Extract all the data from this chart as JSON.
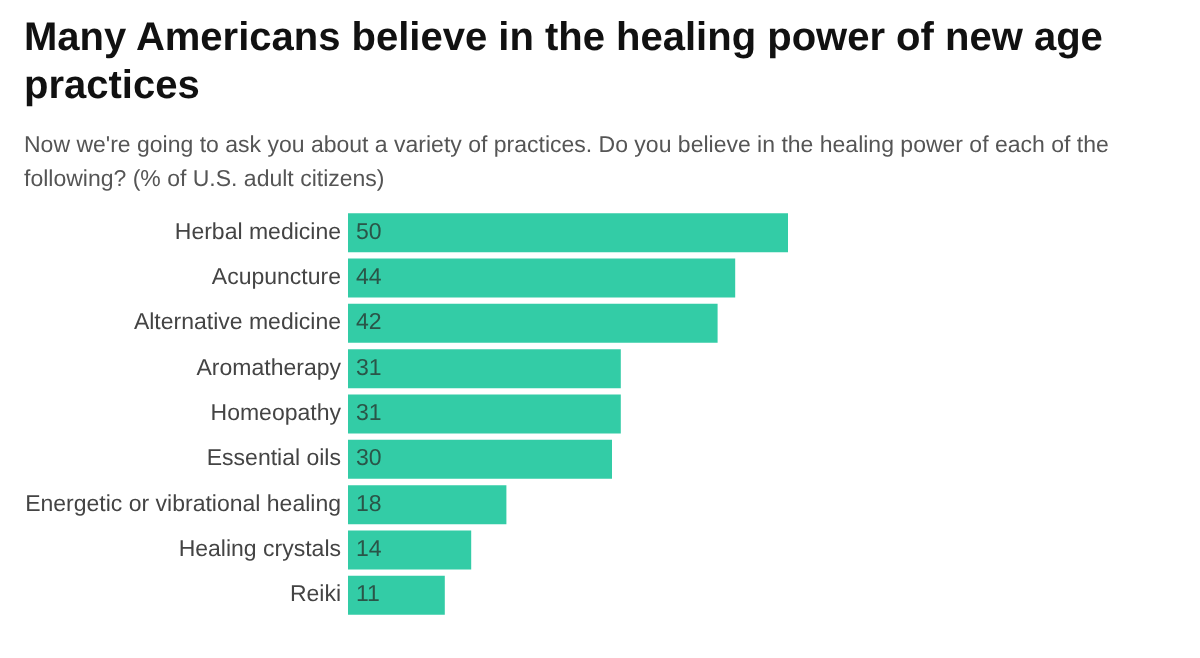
{
  "chart_data": {
    "type": "bar",
    "orientation": "horizontal",
    "title": "Many Americans believe in the healing power of new age practices",
    "subtitle": "Now we're going to ask you about a variety of practices. Do you believe in the healing power of each of the following? (% of U.S. adult citizens)",
    "categories": [
      "Herbal medicine",
      "Acupuncture",
      "Alternative medicine",
      "Aromatherapy",
      "Homeopathy",
      "Essential oils",
      "Energetic or vibrational healing",
      "Healing crystals",
      "Reiki"
    ],
    "values": [
      50,
      44,
      42,
      31,
      31,
      30,
      18,
      14,
      11
    ],
    "color": "#33cca6",
    "data_labels": true
  }
}
